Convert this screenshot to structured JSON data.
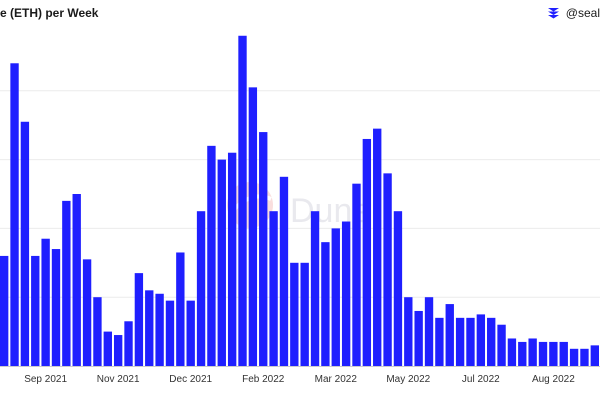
{
  "chart_data": {
    "type": "bar",
    "title": "e (ETH) per Week",
    "xlabel": "",
    "ylabel": "",
    "grid": true,
    "ylim": [
      0,
      100
    ],
    "bar_color": "#1f1fff",
    "x_tick_labels": [
      "Sep 2021",
      "Nov 2021",
      "Dec 2021",
      "Feb 2022",
      "Mar 2022",
      "May 2022",
      "Jul 2022",
      "Aug 2022"
    ],
    "x_tick_indices": [
      4,
      11,
      18,
      25,
      32,
      39,
      46,
      53
    ],
    "series": [
      {
        "values": [
          32,
          88,
          71,
          32,
          37,
          34,
          48,
          50,
          31,
          20,
          10,
          9,
          13,
          27,
          22,
          21,
          19,
          33,
          19,
          45,
          64,
          60,
          62,
          96,
          81,
          68,
          45,
          55,
          30,
          30,
          45,
          36,
          40,
          42,
          53,
          66,
          69,
          56,
          45,
          20,
          16,
          20,
          14,
          18,
          14,
          14,
          15,
          14,
          12,
          8,
          7,
          8,
          7,
          7,
          7,
          5,
          5,
          6
        ]
      }
    ]
  },
  "watermark": {
    "text": "Dune"
  },
  "brand": {
    "label": "@seal",
    "icon": "stacked-chevrons-icon"
  }
}
